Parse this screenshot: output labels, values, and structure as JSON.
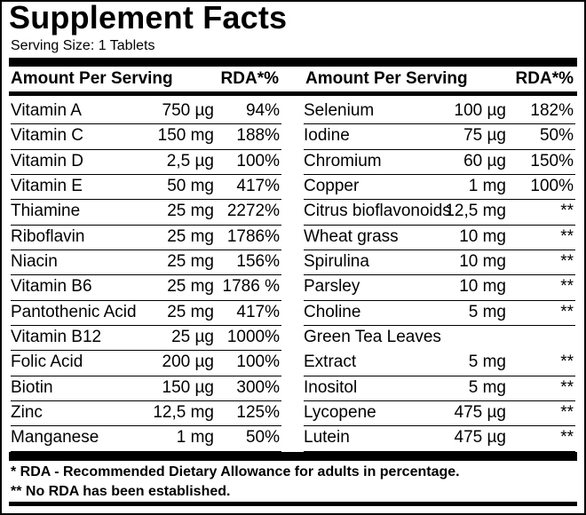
{
  "title": "Supplement Facts",
  "serving_size": "Serving Size: 1 Tablets",
  "header": {
    "amount_label": "Amount Per Serving",
    "rda_label": "RDA*%"
  },
  "left_rows": [
    {
      "name": "Vitamin A",
      "amount": "750 µg",
      "rda": "94%"
    },
    {
      "name": "Vitamin C",
      "amount": "150 mg",
      "rda": "188%"
    },
    {
      "name": "Vitamin D",
      "amount": "2,5 µg",
      "rda": "100%"
    },
    {
      "name": "Vitamin E",
      "amount": "50 mg",
      "rda": "417%"
    },
    {
      "name": "Thiamine",
      "amount": "25 mg",
      "rda": "2272%"
    },
    {
      "name": "Riboflavin",
      "amount": "25 mg",
      "rda": "1786%"
    },
    {
      "name": "Niacin",
      "amount": "25 mg",
      "rda": "156%"
    },
    {
      "name": "Vitamin B6",
      "amount": "25 mg",
      "rda": "1786 %"
    },
    {
      "name": "Pantothenic Acid",
      "amount": "25 mg",
      "rda": "417%"
    },
    {
      "name": "Vitamin B12",
      "amount": "25 µg",
      "rda": "1000%"
    },
    {
      "name": "Folic Acid",
      "amount": "200 µg",
      "rda": "100%"
    },
    {
      "name": "Biotin",
      "amount": "150 µg",
      "rda": "300%"
    },
    {
      "name": "Zinc",
      "amount": "12,5 mg",
      "rda": "125%"
    },
    {
      "name": "Manganese",
      "amount": "1 mg",
      "rda": "50%"
    }
  ],
  "right_rows": [
    {
      "name": "Selenium",
      "amount": "100 µg",
      "rda": "182%"
    },
    {
      "name": "Iodine",
      "amount": "75 µg",
      "rda": "50%"
    },
    {
      "name": "Chromium",
      "amount": "60 µg",
      "rda": "150%"
    },
    {
      "name": "Copper",
      "amount": "1 mg",
      "rda": "100%"
    },
    {
      "name": "Citrus bioflavonoids",
      "amount": "12,5 mg",
      "rda": "**"
    },
    {
      "name": "Wheat grass",
      "amount": "10 mg",
      "rda": "**"
    },
    {
      "name": "Spirulina",
      "amount": "10 mg",
      "rda": "**"
    },
    {
      "name": "Parsley",
      "amount": "10 mg",
      "rda": "**"
    },
    {
      "name": "Choline",
      "amount": "5 mg",
      "rda": "**"
    },
    {
      "name": "Green Tea Leaves",
      "amount": "",
      "rda": ""
    },
    {
      "name": "Extract",
      "amount": "5 mg",
      "rda": "**"
    },
    {
      "name": "Inositol",
      "amount": "5 mg",
      "rda": "**"
    },
    {
      "name": "Lycopene",
      "amount": "475 µg",
      "rda": "**"
    },
    {
      "name": "Lutein",
      "amount": "475 µg",
      "rda": "**"
    }
  ],
  "footnotes": [
    "* RDA - Recommended Dietary Allowance for adults in percentage.",
    "** No RDA has been established."
  ]
}
